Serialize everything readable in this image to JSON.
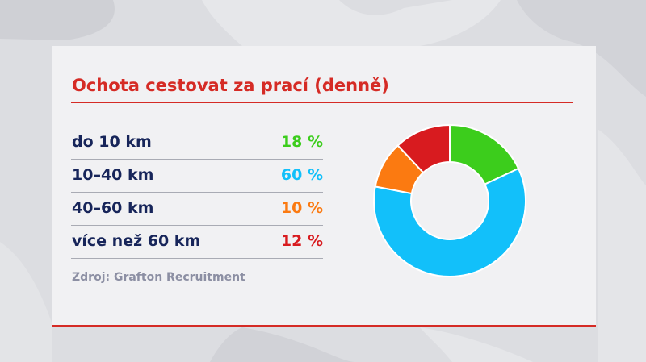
{
  "title": "Ochota cestovat za prací (denně)",
  "source": "Zdroj: Grafton Recruitment",
  "colors": {
    "title_red": "#d52b25",
    "label_navy": "#17255a",
    "source_gray": "#8c8fa3"
  },
  "rows": [
    {
      "label": "do 10 km",
      "value": "18 %",
      "color": "#3ccd1c"
    },
    {
      "label": "10–40 km",
      "value": "60 %",
      "color": "#12c0fa"
    },
    {
      "label": "40–60 km",
      "value": "10 %",
      "color": "#fb7a11"
    },
    {
      "label": "více než 60 km",
      "value": "12 %",
      "color": "#d81b1f"
    }
  ],
  "chart_data": {
    "type": "pie",
    "style": "donut",
    "categories": [
      "do 10 km",
      "10–40 km",
      "40–60 km",
      "více než 60 km"
    ],
    "values": [
      18,
      60,
      10,
      12
    ],
    "unit": "%",
    "colors": [
      "#3ccd1c",
      "#12c0fa",
      "#fb7a11",
      "#d81b1f"
    ],
    "title": "Ochota cestovat za prací (denně)",
    "legend": "left"
  }
}
